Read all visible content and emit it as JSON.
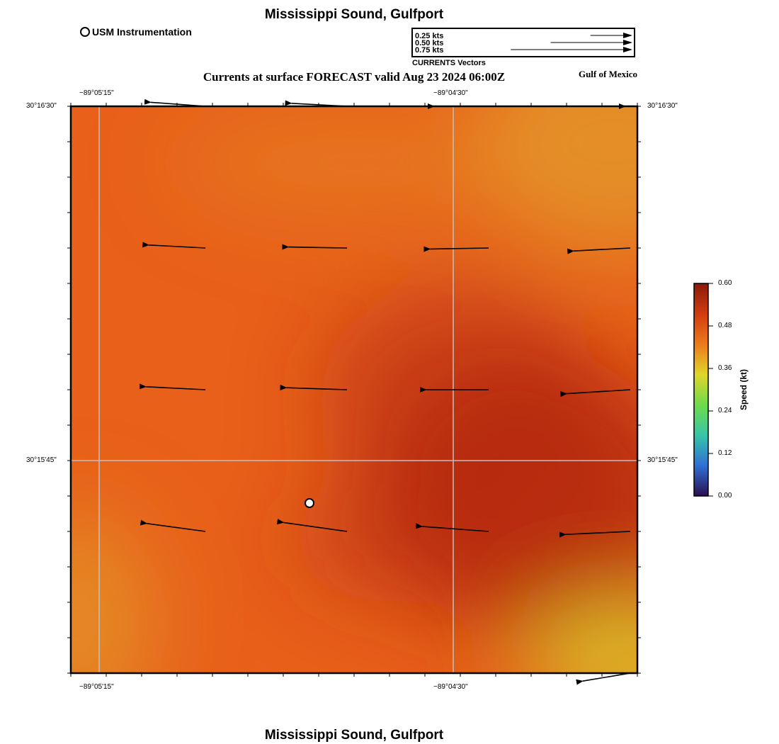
{
  "header": {
    "title": "Mississippi Sound, Gulfport",
    "subtitle": "Currents at surface FORECAST valid Aug 23 2024 06:00Z",
    "region": "Gulf of Mexico"
  },
  "footer": {
    "title": "Mississippi Sound, Gulfport"
  },
  "legend": {
    "station_label": "USM Instrumentation",
    "vector_scale": [
      {
        "label": "0.25 kts",
        "speed": 0.25
      },
      {
        "label": "0.50 kts",
        "speed": 0.5
      },
      {
        "label": "0.75 kts",
        "speed": 0.75
      }
    ],
    "vector_caption": "CURRENTS Vectors"
  },
  "axes": {
    "lon_ticks": [
      "−89°05'15\"",
      "−89°04'30\""
    ],
    "lat_ticks": [
      "30°16'30\"",
      "30°15'45\""
    ]
  },
  "colorbar": {
    "title": "Speed (kt)",
    "ticks": [
      "0.60",
      "0.48",
      "0.36",
      "0.24",
      "0.12",
      "0.00"
    ],
    "range": [
      0,
      0.6
    ],
    "colors": [
      "#2b0f4e",
      "#2f6fd6",
      "#37c5a8",
      "#6edb4a",
      "#e0d62a",
      "#ec7a1c",
      "#d13c0f",
      "#8a1a08"
    ]
  },
  "field_colors": {
    "orange": "#e8601a",
    "dark_red": "#b5290d",
    "amber": "#e39a2a",
    "yellow": "#dcc52a"
  },
  "vectors": [
    {
      "row": 0,
      "col": 0,
      "u": -0.55,
      "v": 0.04
    },
    {
      "row": 0,
      "col": 1,
      "u": -0.56,
      "v": 0.03
    },
    {
      "row": 0,
      "col": 2,
      "u": -0.55,
      "v": 0.0
    },
    {
      "row": 0,
      "col": 3,
      "u": -0.05,
      "v": 0.0
    },
    {
      "row": 1,
      "col": 0,
      "u": -0.57,
      "v": 0.03
    },
    {
      "row": 1,
      "col": 1,
      "u": -0.59,
      "v": 0.01
    },
    {
      "row": 1,
      "col": 2,
      "u": -0.59,
      "v": -0.01
    },
    {
      "row": 1,
      "col": 3,
      "u": -0.57,
      "v": -0.03
    },
    {
      "row": 2,
      "col": 0,
      "u": -0.6,
      "v": 0.03
    },
    {
      "row": 2,
      "col": 1,
      "u": -0.61,
      "v": 0.02
    },
    {
      "row": 2,
      "col": 2,
      "u": -0.63,
      "v": 0.0
    },
    {
      "row": 2,
      "col": 3,
      "u": -0.64,
      "v": -0.04
    },
    {
      "row": 3,
      "col": 0,
      "u": -0.59,
      "v": 0.08
    },
    {
      "row": 3,
      "col": 1,
      "u": -0.64,
      "v": 0.09
    },
    {
      "row": 3,
      "col": 2,
      "u": -0.67,
      "v": 0.05
    },
    {
      "row": 3,
      "col": 3,
      "u": -0.65,
      "v": -0.03
    },
    {
      "row": 4,
      "col": 3,
      "u": -0.48,
      "v": -0.08
    }
  ]
}
